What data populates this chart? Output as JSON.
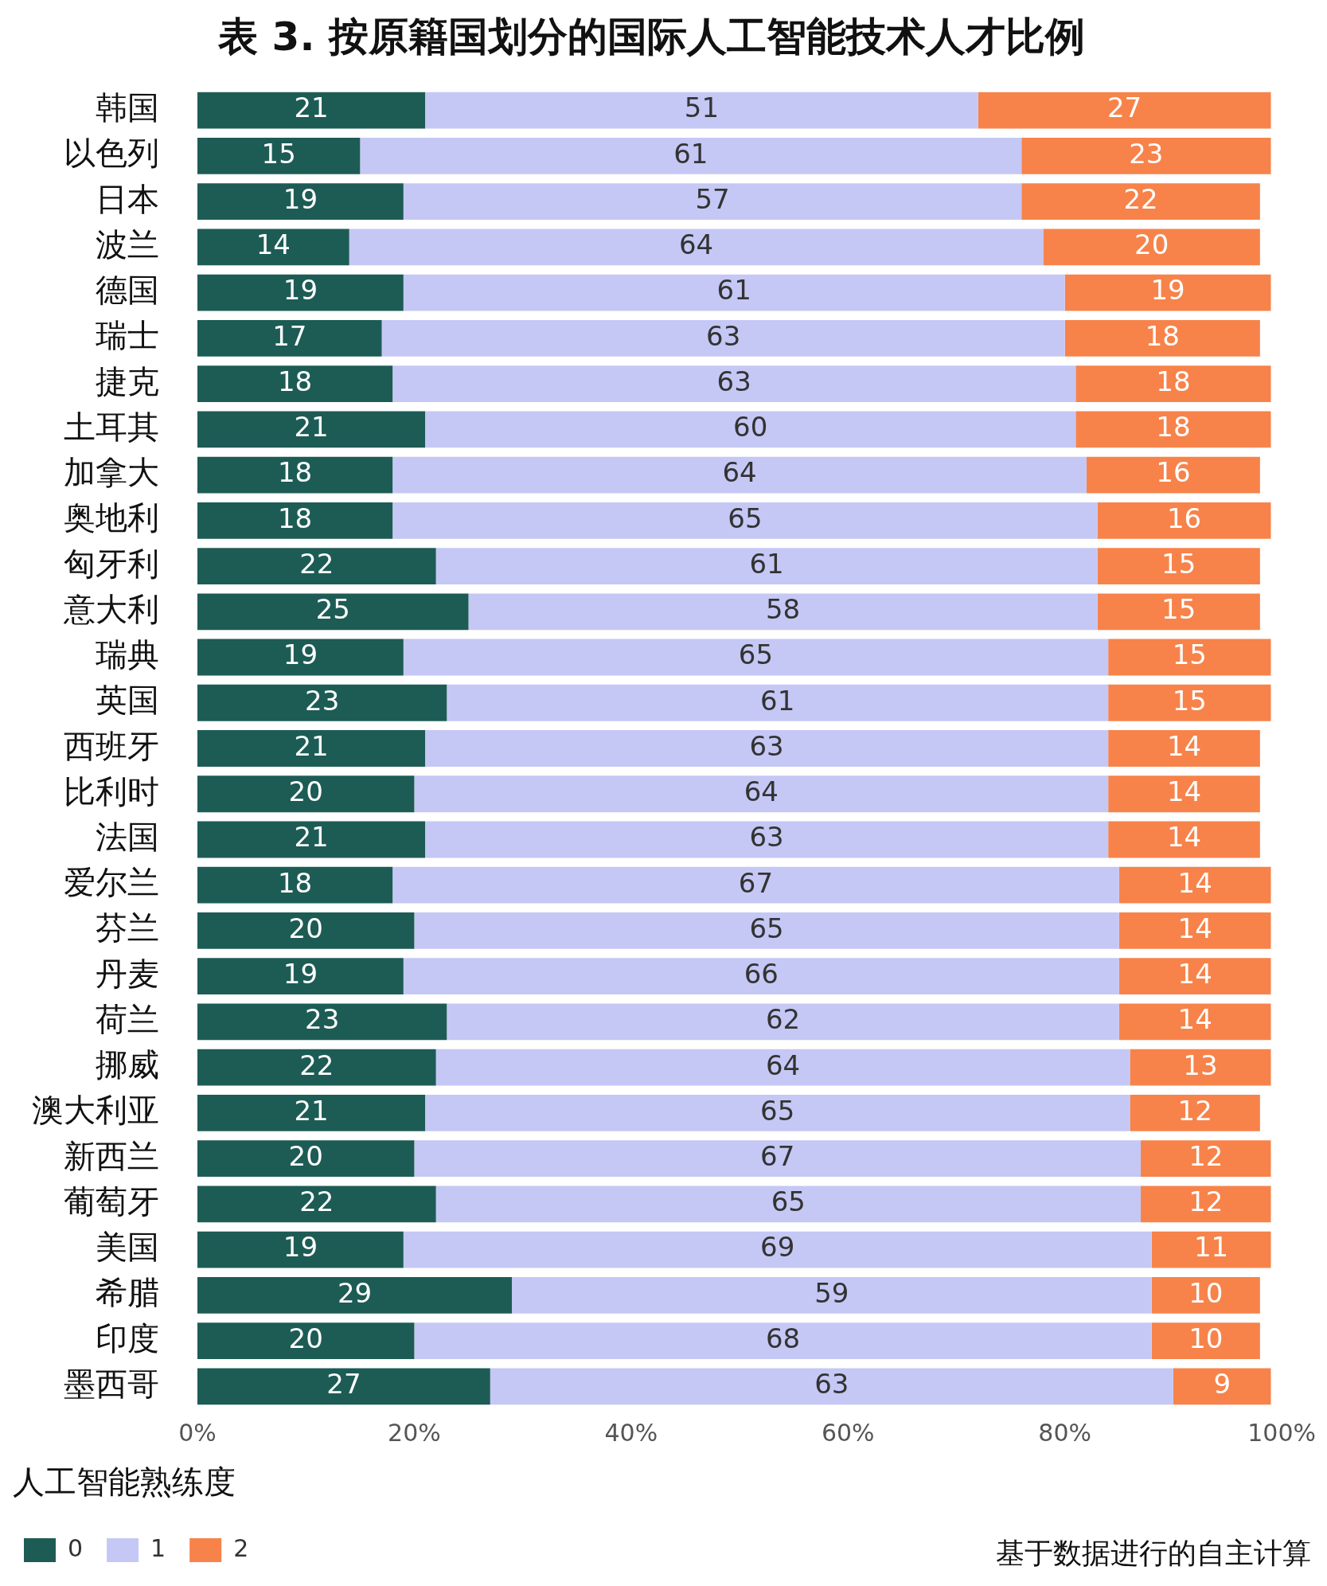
{
  "chart_data": {
    "type": "bar",
    "orientation": "horizontal",
    "stacked": true,
    "title": "表 3. 按原籍国划分的国际人工智能技术人才比例",
    "categories": [
      "韩国",
      "以色列",
      "日本",
      "波兰",
      "德国",
      "瑞士",
      "捷克",
      "土耳其",
      "加拿大",
      "奥地利",
      "匈牙利",
      "意大利",
      "瑞典",
      "英国",
      "西班牙",
      "比利时",
      "法国",
      "爱尔兰",
      "芬兰",
      "丹麦",
      "荷兰",
      "挪威",
      "澳大利亚",
      "新西兰",
      "葡萄牙",
      "美国",
      "希腊",
      "印度",
      "墨西哥"
    ],
    "series": [
      {
        "name": "0",
        "color": "#1d5c55",
        "values": [
          21,
          15,
          19,
          14,
          19,
          17,
          18,
          21,
          18,
          18,
          22,
          25,
          19,
          23,
          21,
          20,
          21,
          18,
          20,
          19,
          23,
          22,
          21,
          20,
          22,
          19,
          29,
          20,
          27
        ]
      },
      {
        "name": "1",
        "color": "#c5c8f5",
        "values": [
          51,
          61,
          57,
          64,
          61,
          63,
          63,
          60,
          64,
          65,
          61,
          58,
          65,
          61,
          63,
          64,
          63,
          67,
          65,
          66,
          62,
          64,
          65,
          67,
          65,
          69,
          59,
          68,
          63
        ]
      },
      {
        "name": "2",
        "color": "#f7834a",
        "values": [
          27,
          23,
          22,
          20,
          19,
          18,
          18,
          18,
          16,
          16,
          15,
          15,
          15,
          15,
          14,
          14,
          14,
          14,
          14,
          14,
          14,
          13,
          12,
          12,
          12,
          11,
          10,
          10,
          9
        ]
      }
    ],
    "xlim": [
      0,
      100
    ],
    "xticks": [
      {
        "value": 0,
        "label": "0%"
      },
      {
        "value": 20,
        "label": "20%"
      },
      {
        "value": 40,
        "label": "40%"
      },
      {
        "value": 60,
        "label": "60%"
      },
      {
        "value": 80,
        "label": "80%"
      },
      {
        "value": 100,
        "label": "100%"
      }
    ],
    "grid": false,
    "data_labels": true,
    "legend": "bottom left",
    "legend_title": "人工智能熟练度",
    "annotations": [
      "基于数据进行的自主计算"
    ]
  }
}
